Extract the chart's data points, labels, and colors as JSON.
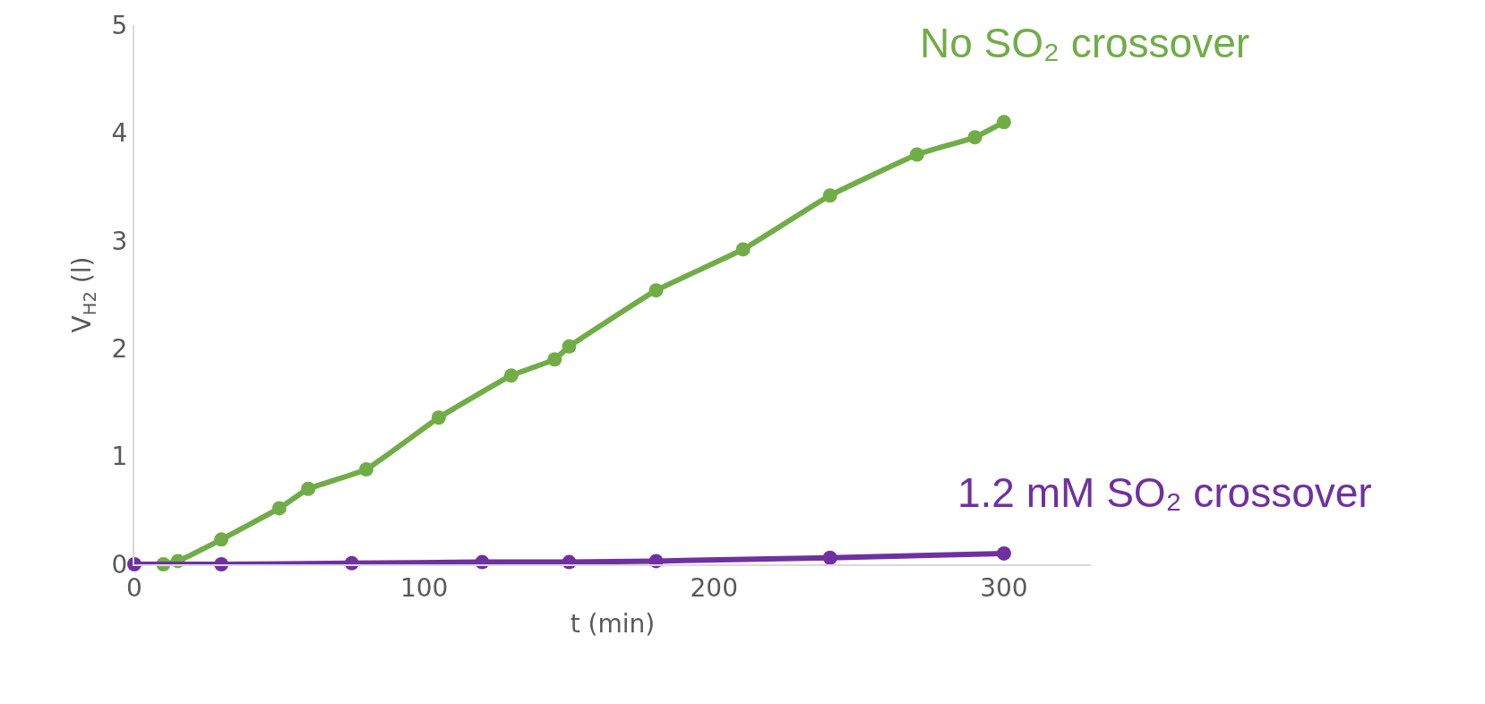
{
  "chart_data": {
    "type": "line",
    "xlabel": "t (min)",
    "ylabel": "V$_{H2}$ (l)",
    "series": [
      {
        "name": "No SO₂ crossover",
        "color": "#70ad47",
        "x": [
          10,
          15,
          30,
          50,
          60,
          80,
          105,
          130,
          145,
          150,
          180,
          210,
          240,
          270,
          290,
          300
        ],
        "values": [
          0,
          0.03,
          0.23,
          0.52,
          0.7,
          0.88,
          1.36,
          1.75,
          1.9,
          2.02,
          2.54,
          2.92,
          3.42,
          3.8,
          3.96,
          4.1
        ]
      },
      {
        "name": "1.2 mM SO₂ crossover",
        "color": "#7030a0",
        "x": [
          0,
          30,
          75,
          120,
          150,
          180,
          240,
          300
        ],
        "values": [
          0,
          0,
          0.01,
          0.02,
          0.02,
          0.03,
          0.06,
          0.1
        ]
      }
    ],
    "xlim": [
      0,
      330
    ],
    "xticks": [
      0,
      100,
      200,
      300
    ],
    "ylim": [
      0,
      5
    ],
    "yticks": [
      0,
      1,
      2,
      3,
      4,
      5
    ],
    "legend": false,
    "marker": "circle",
    "line_style": "solid"
  }
}
